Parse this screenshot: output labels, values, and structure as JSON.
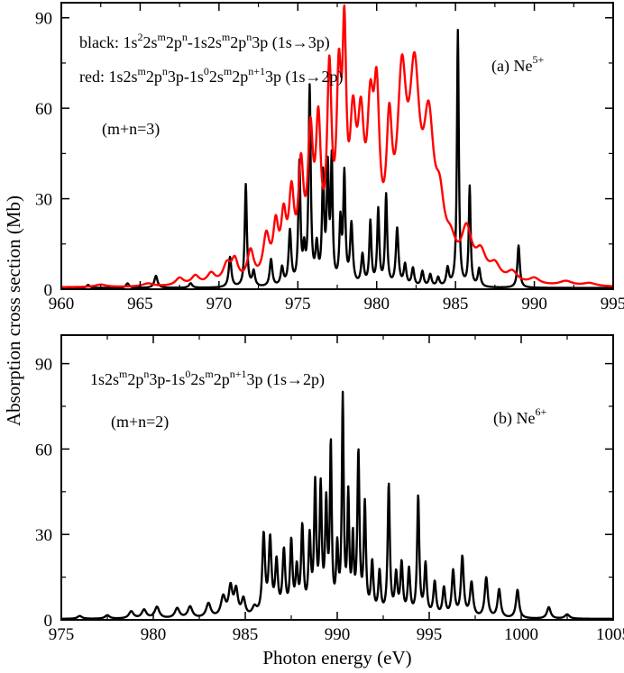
{
  "chart_data": [
    {
      "type": "line",
      "panel": "a",
      "xlim": [
        960,
        995
      ],
      "ylim": [
        0,
        95
      ],
      "xticks": [
        960,
        965,
        970,
        975,
        980,
        985,
        990,
        995
      ],
      "yticks": [
        0,
        30,
        60,
        90
      ],
      "xticks_text": [
        "960",
        "965",
        "970",
        "975",
        "980",
        "985",
        "990",
        "995"
      ],
      "yticks_text": [
        "0",
        "30",
        "60",
        "90"
      ],
      "label_main": "(a) Ne",
      "label_sup": "5+",
      "condition": "(m+n=3)",
      "legend_black": {
        "parts": [
          {
            "t": "black: 1s"
          },
          {
            "t": "2",
            "sup": true
          },
          {
            "t": "2s"
          },
          {
            "t": "m",
            "sup": true
          },
          {
            "t": "2p"
          },
          {
            "t": "n",
            "sup": true
          },
          {
            "t": "-1s2s"
          },
          {
            "t": "m",
            "sup": true
          },
          {
            "t": "2p"
          },
          {
            "t": "n",
            "sup": true
          },
          {
            "t": "3p  (1s→3p)"
          }
        ]
      },
      "legend_red": {
        "parts": [
          {
            "t": "red: 1s2s"
          },
          {
            "t": "m",
            "sup": true
          },
          {
            "t": "2p"
          },
          {
            "t": "n",
            "sup": true
          },
          {
            "t": "3p-1s"
          },
          {
            "t": "0",
            "sup": true
          },
          {
            "t": "2s"
          },
          {
            "t": "m",
            "sup": true
          },
          {
            "t": "2p"
          },
          {
            "t": "n+1",
            "sup": true
          },
          {
            "t": "3p  (1s→2p)"
          }
        ]
      },
      "series": [
        {
          "name": "black (1s→3p)",
          "color": "#000000",
          "baseline": 0.4,
          "peaks": [
            [
              961.7,
              1.0,
              0.12
            ],
            [
              964.2,
              1.5,
              0.12
            ],
            [
              966.0,
              4.0,
              0.12
            ],
            [
              968.2,
              1.5,
              0.12
            ],
            [
              970.7,
              10.0,
              0.1
            ],
            [
              971.7,
              34.0,
              0.08
            ],
            [
              972.2,
              5.0,
              0.1
            ],
            [
              973.3,
              9.0,
              0.1
            ],
            [
              974.0,
              6.0,
              0.1
            ],
            [
              974.5,
              18.0,
              0.1
            ],
            [
              975.1,
              40.0,
              0.08
            ],
            [
              975.4,
              10.0,
              0.08
            ],
            [
              975.75,
              65.0,
              0.08
            ],
            [
              976.2,
              12.0,
              0.1
            ],
            [
              976.6,
              35.0,
              0.08
            ],
            [
              976.9,
              37.0,
              0.08
            ],
            [
              977.15,
              40.0,
              0.07
            ],
            [
              977.7,
              20.0,
              0.08
            ],
            [
              977.95,
              36.0,
              0.08
            ],
            [
              978.4,
              20.0,
              0.1
            ],
            [
              979.1,
              10.0,
              0.1
            ],
            [
              979.6,
              21.0,
              0.08
            ],
            [
              980.1,
              25.0,
              0.08
            ],
            [
              980.6,
              30.0,
              0.08
            ],
            [
              981.3,
              19.0,
              0.1
            ],
            [
              981.8,
              7.0,
              0.1
            ],
            [
              982.3,
              6.0,
              0.1
            ],
            [
              982.9,
              5.0,
              0.1
            ],
            [
              983.4,
              4.0,
              0.1
            ],
            [
              983.9,
              3.0,
              0.1
            ],
            [
              984.5,
              6.0,
              0.1
            ],
            [
              985.15,
              85.0,
              0.07
            ],
            [
              985.9,
              33.0,
              0.07
            ],
            [
              986.5,
              6.0,
              0.1
            ],
            [
              989.0,
              14.0,
              0.09
            ]
          ]
        },
        {
          "name": "red (1s→2p)",
          "color": "#ff0000",
          "baseline": 0.5,
          "peaks": [
            [
              962.5,
              0.8,
              0.4
            ],
            [
              965.5,
              1.0,
              0.4
            ],
            [
              967.5,
              2.5,
              0.3
            ],
            [
              968.5,
              3.0,
              0.3
            ],
            [
              969.5,
              3.5,
              0.3
            ],
            [
              970.5,
              6.0,
              0.3
            ],
            [
              971.0,
              7.0,
              0.25
            ],
            [
              972.0,
              10.0,
              0.25
            ],
            [
              973.0,
              14.0,
              0.25
            ],
            [
              973.6,
              16.0,
              0.2
            ],
            [
              974.1,
              18.0,
              0.2
            ],
            [
              974.6,
              25.0,
              0.2
            ],
            [
              975.2,
              33.0,
              0.2
            ],
            [
              975.8,
              42.0,
              0.2
            ],
            [
              976.3,
              45.0,
              0.2
            ],
            [
              977.0,
              62.0,
              0.18
            ],
            [
              977.6,
              55.0,
              0.18
            ],
            [
              977.95,
              66.0,
              0.15
            ],
            [
              978.5,
              42.0,
              0.25
            ],
            [
              979.0,
              40.0,
              0.25
            ],
            [
              979.6,
              43.0,
              0.25
            ],
            [
              980.0,
              48.0,
              0.22
            ],
            [
              980.8,
              40.0,
              0.22
            ],
            [
              981.6,
              57.0,
              0.35
            ],
            [
              982.4,
              58.0,
              0.4
            ],
            [
              983.3,
              44.0,
              0.4
            ],
            [
              984.0,
              18.0,
              0.35
            ],
            [
              984.7,
              8.0,
              0.4
            ],
            [
              985.7,
              15.0,
              0.4
            ],
            [
              986.6,
              8.0,
              0.4
            ],
            [
              987.5,
              5.0,
              0.4
            ],
            [
              988.6,
              3.5,
              0.4
            ],
            [
              990.0,
              2.0,
              0.4
            ],
            [
              992.0,
              1.5,
              0.5
            ],
            [
              993.5,
              1.0,
              0.5
            ]
          ]
        }
      ]
    },
    {
      "type": "line",
      "panel": "b",
      "xlim": [
        975,
        1005
      ],
      "ylim": [
        0,
        100
      ],
      "xticks": [
        975,
        980,
        985,
        990,
        995,
        1000,
        1005
      ],
      "yticks": [
        0,
        30,
        60,
        90
      ],
      "xticks_text": [
        "975",
        "980",
        "985",
        "990",
        "995",
        "1000",
        "1005"
      ],
      "yticks_text": [
        "0",
        "30",
        "60",
        "90"
      ],
      "label_main": "(b) Ne",
      "label_sup": "6+",
      "condition": "(m+n=2)",
      "legend_black": {
        "parts": [
          {
            "t": "1s2s"
          },
          {
            "t": "m",
            "sup": true
          },
          {
            "t": "2p"
          },
          {
            "t": "n",
            "sup": true
          },
          {
            "t": "3p-1s"
          },
          {
            "t": "0",
            "sup": true
          },
          {
            "t": "2s"
          },
          {
            "t": "m",
            "sup": true
          },
          {
            "t": "2p"
          },
          {
            "t": "n+1",
            "sup": true
          },
          {
            "t": "3p  (1s→2p)"
          }
        ]
      },
      "xlabel": "Photon energy (eV)",
      "series": [
        {
          "name": "Ne6+ (1s→2p)",
          "color": "#000000",
          "baseline": 0.3,
          "peaks": [
            [
              976.0,
              1.0,
              0.15
            ],
            [
              977.5,
              1.2,
              0.15
            ],
            [
              978.8,
              2.5,
              0.15
            ],
            [
              979.5,
              3.0,
              0.15
            ],
            [
              980.2,
              4.0,
              0.15
            ],
            [
              981.3,
              3.5,
              0.15
            ],
            [
              982.0,
              4.0,
              0.15
            ],
            [
              983.0,
              5.0,
              0.15
            ],
            [
              983.8,
              7.0,
              0.15
            ],
            [
              984.2,
              10.0,
              0.12
            ],
            [
              984.5,
              9.0,
              0.12
            ],
            [
              984.9,
              6.0,
              0.12
            ],
            [
              985.5,
              3.0,
              0.15
            ],
            [
              986.0,
              28.0,
              0.09
            ],
            [
              986.35,
              26.0,
              0.09
            ],
            [
              986.7,
              18.0,
              0.09
            ],
            [
              987.1,
              22.0,
              0.09
            ],
            [
              987.5,
              25.0,
              0.08
            ],
            [
              987.8,
              15.0,
              0.08
            ],
            [
              988.1,
              30.0,
              0.08
            ],
            [
              988.5,
              26.0,
              0.08
            ],
            [
              988.8,
              44.0,
              0.07
            ],
            [
              989.1,
              43.0,
              0.07
            ],
            [
              989.4,
              37.0,
              0.07
            ],
            [
              989.65,
              58.0,
              0.06
            ],
            [
              990.0,
              22.0,
              0.07
            ],
            [
              990.3,
              75.0,
              0.06
            ],
            [
              990.6,
              40.0,
              0.06
            ],
            [
              990.85,
              25.0,
              0.06
            ],
            [
              991.15,
              56.0,
              0.07
            ],
            [
              991.5,
              38.0,
              0.07
            ],
            [
              991.9,
              18.0,
              0.08
            ],
            [
              992.3,
              15.0,
              0.08
            ],
            [
              992.8,
              46.0,
              0.07
            ],
            [
              993.2,
              14.0,
              0.08
            ],
            [
              993.5,
              18.0,
              0.08
            ],
            [
              993.9,
              16.0,
              0.08
            ],
            [
              994.4,
              42.0,
              0.07
            ],
            [
              994.8,
              18.0,
              0.08
            ],
            [
              995.3,
              12.0,
              0.09
            ],
            [
              995.8,
              10.0,
              0.09
            ],
            [
              996.3,
              16.0,
              0.09
            ],
            [
              996.8,
              21.0,
              0.09
            ],
            [
              997.3,
              12.0,
              0.1
            ],
            [
              998.1,
              14.0,
              0.1
            ],
            [
              998.8,
              10.0,
              0.1
            ],
            [
              999.8,
              10.0,
              0.1
            ],
            [
              1001.5,
              4.0,
              0.12
            ],
            [
              1002.5,
              1.5,
              0.15
            ]
          ]
        }
      ]
    }
  ],
  "ylabel": "Absorption cross section (Mb)"
}
